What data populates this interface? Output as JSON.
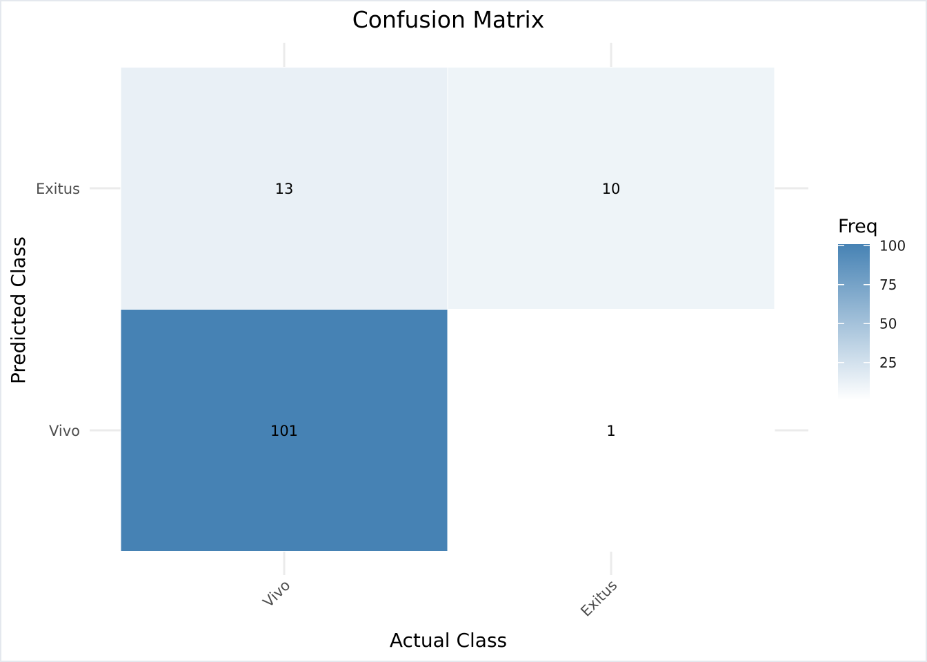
{
  "chart_data": {
    "type": "heatmap",
    "title": "Confusion Matrix",
    "xlabel": "Actual Class",
    "ylabel": "Predicted Class",
    "x_categories": [
      "Vivo",
      "Exitus"
    ],
    "y_categories": [
      "Vivo",
      "Exitus"
    ],
    "cells": [
      {
        "actual": "Vivo",
        "predicted": "Exitus",
        "value": 13
      },
      {
        "actual": "Exitus",
        "predicted": "Exitus",
        "value": 10
      },
      {
        "actual": "Vivo",
        "predicted": "Vivo",
        "value": 101
      },
      {
        "actual": "Exitus",
        "predicted": "Vivo",
        "value": 1
      }
    ],
    "color_scale": {
      "low": "#ffffff",
      "high": "#4682b4",
      "min": 1,
      "max": 101
    },
    "legend": {
      "title": "Freq",
      "ticks": [
        25,
        50,
        75,
        100
      ],
      "position": "right"
    },
    "grid": true
  }
}
